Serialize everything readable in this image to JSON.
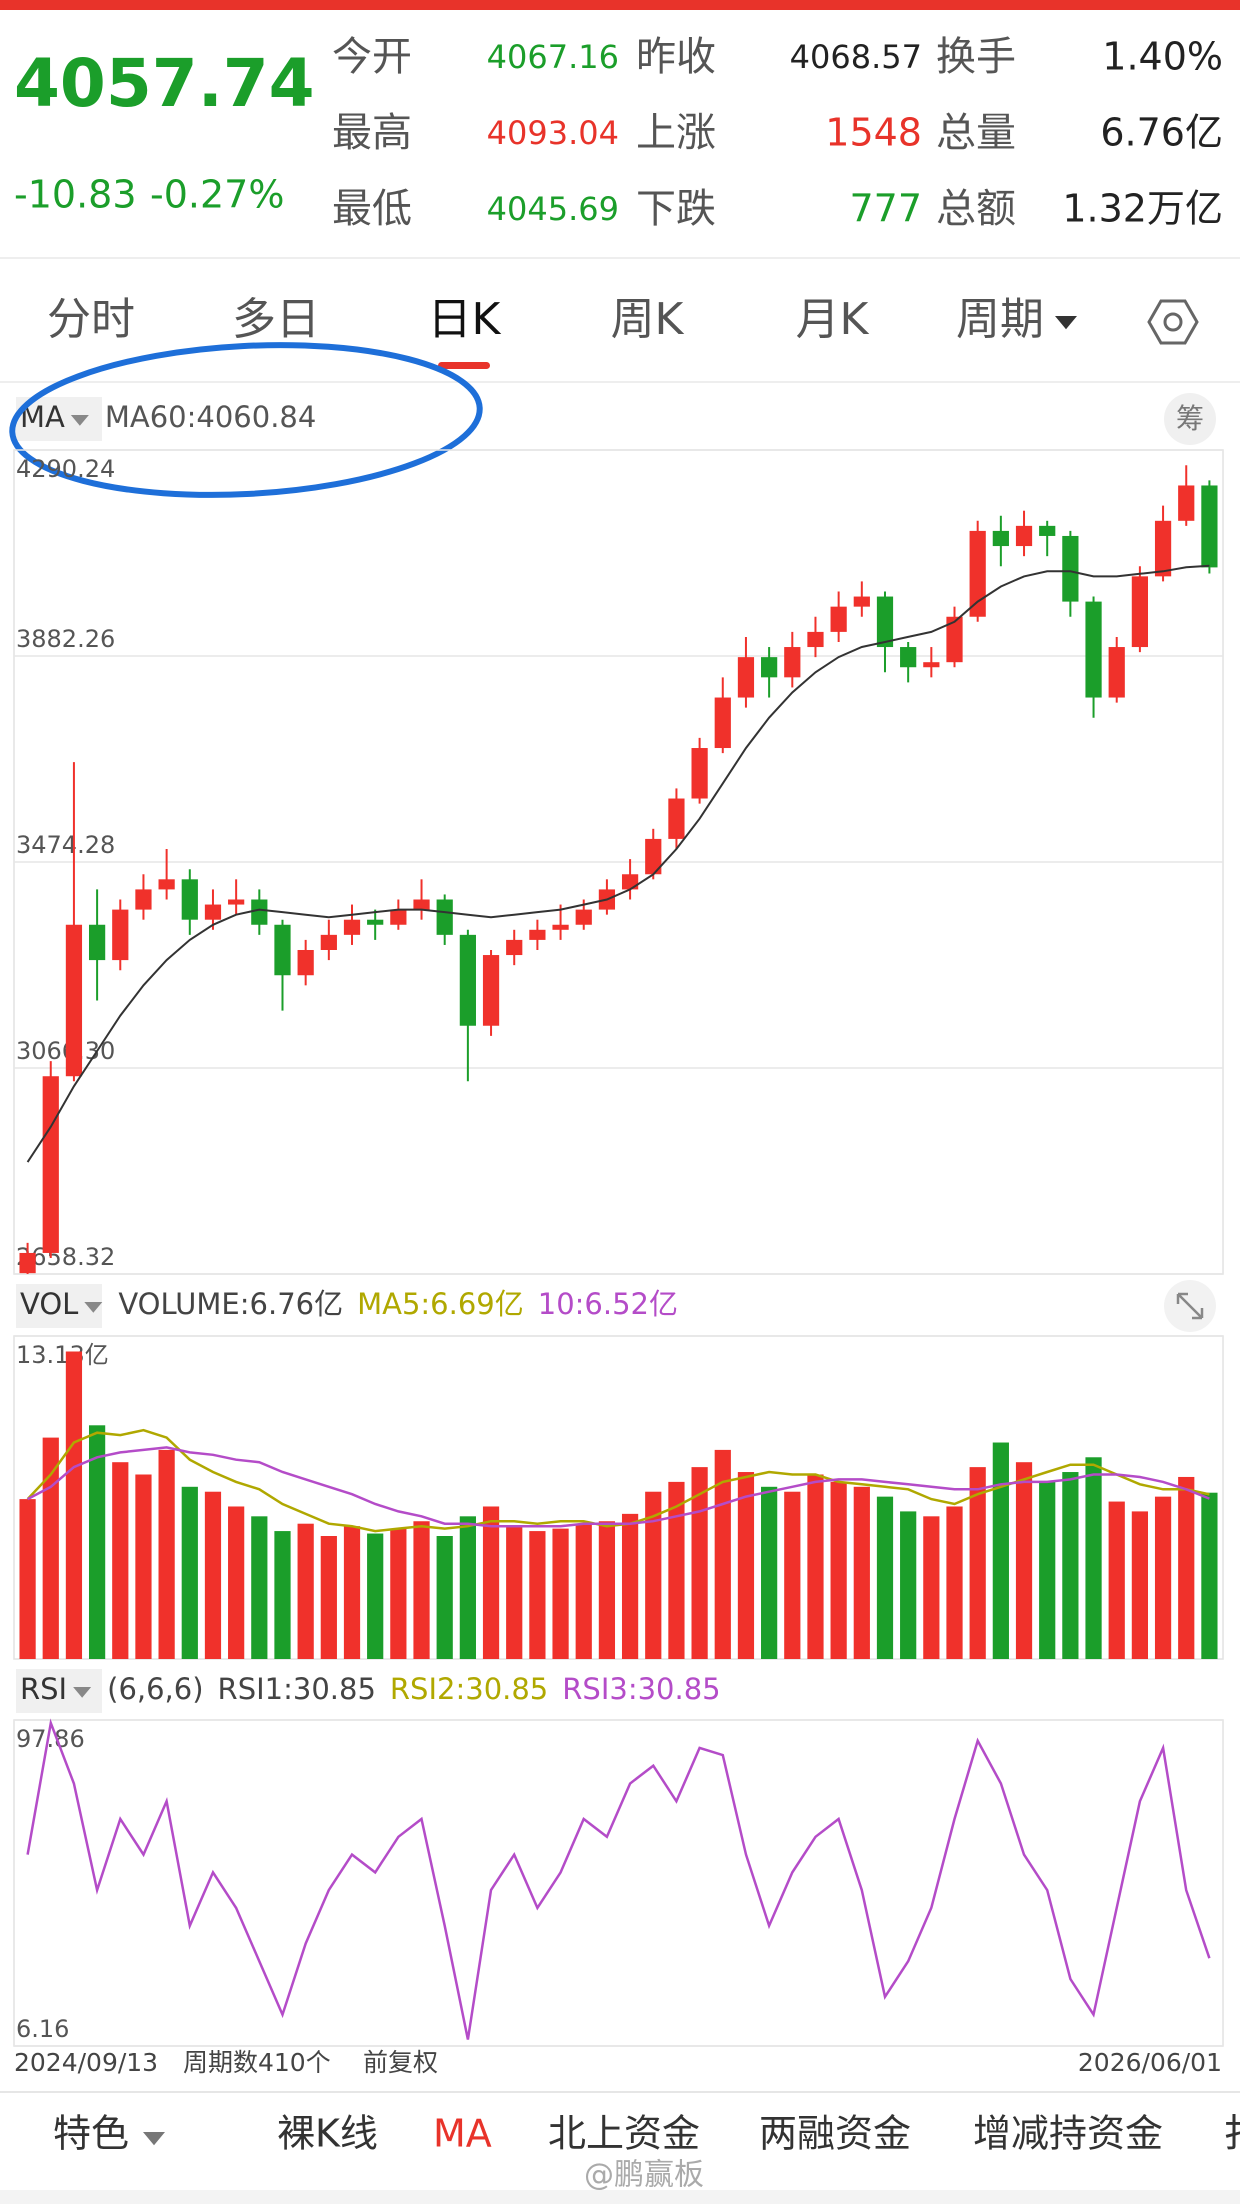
{
  "quote": {
    "price": "4057.74",
    "change": "-10.83",
    "change_pct": "-0.27%",
    "color": "#1b9e2a",
    "fields": [
      {
        "label": "今开",
        "value": "4067.16",
        "color": "#1b9e2a"
      },
      {
        "label": "昨收",
        "value": "4068.57",
        "color": "#222222"
      },
      {
        "label": "换手",
        "value": "1.40%",
        "color": "#222222"
      },
      {
        "label": "最高",
        "value": "4093.04",
        "color": "#e8332a"
      },
      {
        "label": "上涨",
        "value": "1548",
        "color": "#e8332a"
      },
      {
        "label": "总量",
        "value": "6.76亿",
        "color": "#222222"
      },
      {
        "label": "最低",
        "value": "4045.69",
        "color": "#1b9e2a"
      },
      {
        "label": "下跌",
        "value": "777",
        "color": "#1b9e2a"
      },
      {
        "label": "总额",
        "value": "1.32万亿",
        "color": "#222222"
      }
    ]
  },
  "tabs": {
    "items": [
      "分时",
      "多日",
      "日K",
      "周K",
      "月K",
      "周期"
    ],
    "active": 2
  },
  "main_legend": {
    "selector": "MA",
    "items": [
      {
        "text": "MA60:4060.84",
        "color": "#555555"
      }
    ],
    "button": "筹"
  },
  "vol_legend": {
    "selector": "VOL",
    "items": [
      {
        "text": "VOLUME:6.76亿",
        "color": "#444444"
      },
      {
        "text": "MA5:6.69亿",
        "color": "#b0a800"
      },
      {
        "text": "10:6.52亿",
        "color": "#b44cc8"
      }
    ]
  },
  "rsi_legend": {
    "selector": "RSI",
    "items": [
      {
        "text": "(6,6,6)",
        "color": "#444444"
      },
      {
        "text": "RSI1:30.85",
        "color": "#444444"
      },
      {
        "text": "RSI2:30.85",
        "color": "#b0a800"
      },
      {
        "text": "RSI3:30.85",
        "color": "#b44cc8"
      }
    ]
  },
  "footer_axis": {
    "start": "2024/09/13",
    "count": "周期数410个",
    "adjust": "前复权",
    "end": "2026/06/01"
  },
  "bottom_bar": {
    "items": [
      "特色",
      "裸K线",
      "MA",
      "北上资金",
      "两融资金",
      "增减持资金",
      "扌"
    ],
    "active": 2
  },
  "watermark": "@鹏赢板",
  "chart_data": [
    {
      "type": "candlestick",
      "up_color": "#f0312b",
      "down_color": "#1b9e2a",
      "ylim": [
        2658.32,
        4290.24
      ],
      "yticks": [
        4290.24,
        3882.26,
        3474.28,
        {
          "value": 3066.3,
          "label": "3066.30"
        },
        2658.32
      ],
      "open": [
        2660,
        2700,
        3050,
        3350,
        3280,
        3380,
        3420,
        3440,
        3360,
        3390,
        3400,
        3350,
        3250,
        3300,
        3330,
        3360,
        3350,
        3380,
        3400,
        3330,
        3150,
        3290,
        3320,
        3340,
        3350,
        3380,
        3420,
        3450,
        3520,
        3600,
        3700,
        3800,
        3880,
        3840,
        3900,
        3930,
        3980,
        4000,
        3900,
        3860,
        3870,
        3960,
        4130,
        4100,
        4140,
        4120,
        3990,
        3800,
        3900,
        4040,
        4150,
        4220
      ],
      "high": [
        2720,
        3080,
        3672,
        3420,
        3400,
        3450,
        3500,
        3460,
        3420,
        3440,
        3420,
        3360,
        3320,
        3360,
        3390,
        3380,
        3400,
        3440,
        3410,
        3340,
        3300,
        3340,
        3360,
        3390,
        3400,
        3440,
        3480,
        3540,
        3620,
        3720,
        3840,
        3920,
        3900,
        3930,
        3960,
        4010,
        4030,
        4010,
        3910,
        3900,
        3980,
        4150,
        4160,
        4170,
        4150,
        4130,
        4000,
        3920,
        4060,
        4180,
        4260,
        4230
      ],
      "low": [
        2658.32,
        2690,
        3040,
        3200,
        3260,
        3360,
        3400,
        3330,
        3340,
        3370,
        3330,
        3180,
        3230,
        3280,
        3310,
        3320,
        3340,
        3360,
        3310,
        3040,
        3130,
        3270,
        3300,
        3320,
        3340,
        3370,
        3400,
        3440,
        3500,
        3590,
        3690,
        3780,
        3800,
        3820,
        3880,
        3910,
        3960,
        3850,
        3830,
        3840,
        3860,
        3950,
        4060,
        4080,
        4080,
        3960,
        3760,
        3790,
        3890,
        4030,
        4140,
        4045.69
      ],
      "close": [
        2700,
        3050,
        3350,
        3280,
        3380,
        3420,
        3440,
        3360,
        3390,
        3400,
        3350,
        3250,
        3300,
        3330,
        3360,
        3350,
        3380,
        3400,
        3330,
        3150,
        3290,
        3320,
        3340,
        3350,
        3380,
        3420,
        3450,
        3520,
        3600,
        3700,
        3800,
        3880,
        3840,
        3900,
        3930,
        3980,
        4000,
        3900,
        3860,
        3870,
        3960,
        4130,
        4100,
        4140,
        4120,
        3990,
        3800,
        3900,
        4040,
        4150,
        4220,
        4057.74
      ],
      "series": [
        {
          "name": "MA60",
          "color": "#333333",
          "values": [
            2880,
            2950,
            3030,
            3100,
            3170,
            3230,
            3280,
            3320,
            3350,
            3370,
            3380,
            3375,
            3370,
            3365,
            3370,
            3375,
            3380,
            3380,
            3375,
            3370,
            3365,
            3370,
            3375,
            3380,
            3390,
            3400,
            3420,
            3450,
            3500,
            3560,
            3630,
            3700,
            3760,
            3810,
            3850,
            3880,
            3900,
            3910,
            3920,
            3930,
            3950,
            3990,
            4020,
            4040,
            4050,
            4050,
            4040,
            4040,
            4045,
            4050,
            4058,
            4060.84
          ]
        }
      ]
    },
    {
      "type": "bar",
      "up_color": "#f0312b",
      "down_color": "#1b9e2a",
      "ylim": [
        0,
        13.13
      ],
      "yticks": [
        {
          "value": 13.13,
          "label": "13.13亿"
        }
      ],
      "values": [
        6.5,
        9,
        12.5,
        9.5,
        8,
        7.5,
        8.5,
        7,
        6.8,
        6.2,
        5.8,
        5.2,
        5.5,
        5.0,
        5.4,
        5.1,
        5.3,
        5.6,
        5.0,
        5.8,
        6.2,
        5.4,
        5.2,
        5.3,
        5.5,
        5.6,
        5.9,
        6.8,
        7.2,
        7.8,
        8.5,
        7.6,
        7.0,
        6.8,
        7.5,
        7.2,
        7.0,
        6.6,
        6.0,
        5.8,
        6.2,
        7.8,
        8.8,
        8.0,
        7.2,
        7.6,
        8.2,
        6.4,
        6.0,
        6.6,
        7.4,
        6.76
      ],
      "series": [
        {
          "name": "MA5",
          "color": "#b0a800",
          "values": [
            6.5,
            7.5,
            8.8,
            9.2,
            9.1,
            9.3,
            9.0,
            8.1,
            7.6,
            7.2,
            6.9,
            6.3,
            5.9,
            5.5,
            5.4,
            5.2,
            5.3,
            5.4,
            5.3,
            5.4,
            5.6,
            5.6,
            5.5,
            5.6,
            5.6,
            5.4,
            5.5,
            5.8,
            6.2,
            6.7,
            7.2,
            7.4,
            7.6,
            7.5,
            7.5,
            7.2,
            7.1,
            7.0,
            6.9,
            6.5,
            6.3,
            6.7,
            7.0,
            7.3,
            7.6,
            7.9,
            7.9,
            7.5,
            7.1,
            6.9,
            6.9,
            6.69
          ]
        },
        {
          "name": "10",
          "color": "#b44cc8",
          "values": [
            6.5,
            7.0,
            7.8,
            8.2,
            8.4,
            8.5,
            8.6,
            8.4,
            8.3,
            8.1,
            8.0,
            7.6,
            7.3,
            7.0,
            6.7,
            6.3,
            6.0,
            5.8,
            5.5,
            5.5,
            5.4,
            5.4,
            5.4,
            5.4,
            5.5,
            5.5,
            5.5,
            5.6,
            5.8,
            6.0,
            6.3,
            6.6,
            6.8,
            7.0,
            7.2,
            7.3,
            7.3,
            7.2,
            7.1,
            7.0,
            6.9,
            6.9,
            7.1,
            7.2,
            7.2,
            7.3,
            7.5,
            7.5,
            7.4,
            7.2,
            6.9,
            6.52
          ]
        }
      ]
    },
    {
      "type": "line",
      "ylim": [
        6.16,
        97.86
      ],
      "yticks": [
        97.86,
        6.16
      ],
      "series": [
        {
          "name": "RSI",
          "color": "#b44cc8",
          "values": [
            60,
            97,
            80,
            50,
            70,
            60,
            75,
            40,
            55,
            45,
            30,
            15,
            35,
            50,
            60,
            55,
            65,
            70,
            40,
            8,
            50,
            60,
            45,
            55,
            70,
            65,
            80,
            85,
            75,
            90,
            88,
            60,
            40,
            55,
            65,
            70,
            50,
            20,
            30,
            45,
            70,
            92,
            80,
            60,
            50,
            25,
            15,
            45,
            75,
            90,
            50,
            30.85
          ]
        }
      ]
    }
  ]
}
